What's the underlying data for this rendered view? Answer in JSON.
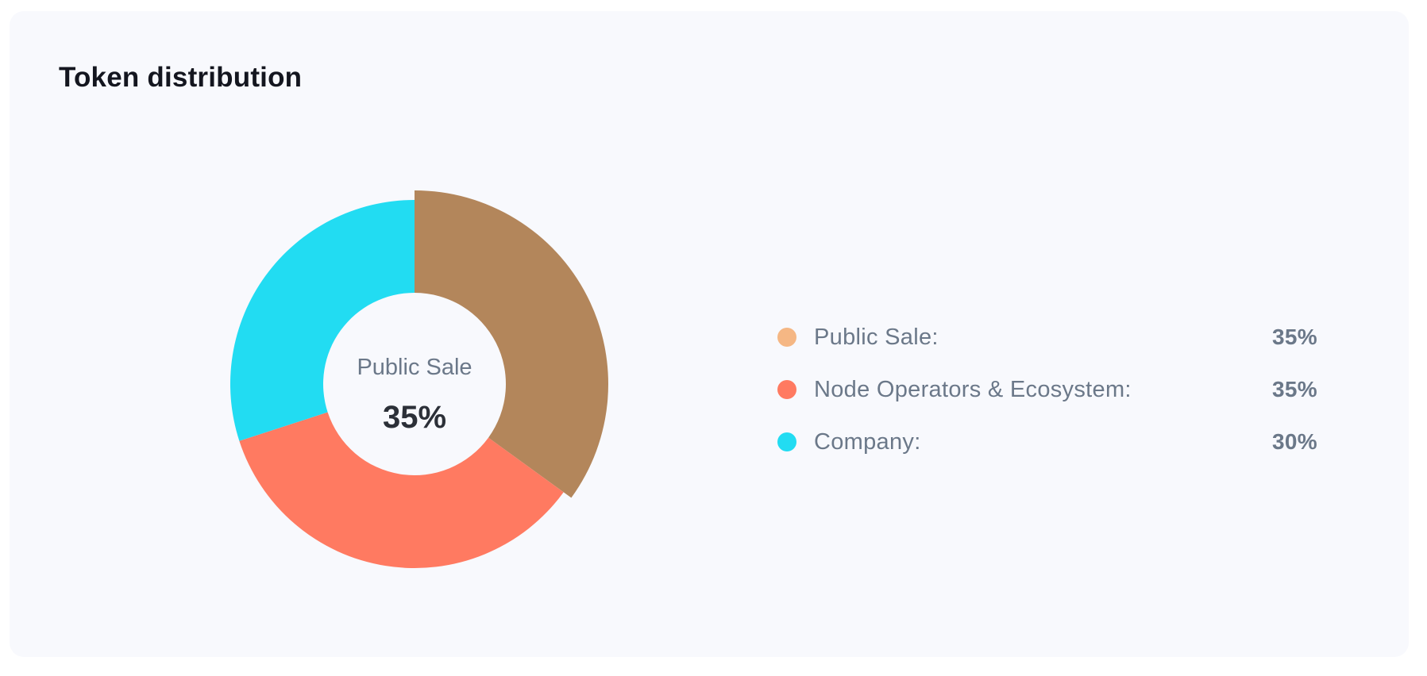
{
  "card": {
    "title": "Token distribution"
  },
  "chart_data": {
    "type": "pie",
    "variant": "donut",
    "categories": [
      "Public Sale",
      "Node Operators & Ecosystem",
      "Company"
    ],
    "values": [
      35,
      35,
      30
    ],
    "unit": "%",
    "colors": [
      "#b3865b",
      "#ff7a61",
      "#22dcf2"
    ],
    "active_index": 0,
    "center_label": "Public Sale",
    "center_value": "35%",
    "legend_placement": "right",
    "legend": [
      {
        "label": "Public Sale:",
        "value": "35%",
        "color": "#f5b784"
      },
      {
        "label": "Node Operators & Ecosystem:",
        "value": "35%",
        "color": "#ff7a61"
      },
      {
        "label": "Company:",
        "value": "30%",
        "color": "#22dcf2"
      }
    ]
  }
}
